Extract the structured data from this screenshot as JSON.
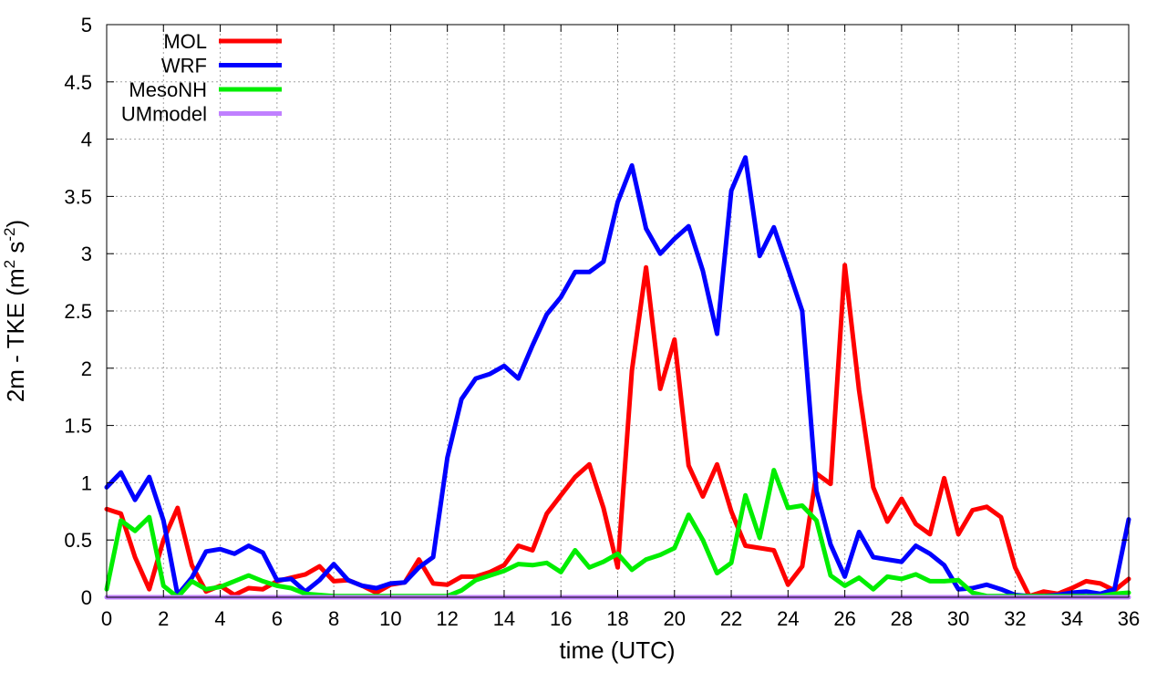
{
  "chart_data": {
    "type": "line",
    "xlabel": "time (UTC)",
    "ylabel_main": "2m - TKE (m",
    "ylabel_sup1": "2",
    "ylabel_mid": " s",
    "ylabel_sup2": "-2",
    "ylabel_end": ")",
    "xlim": [
      0,
      36
    ],
    "ylim": [
      0,
      5
    ],
    "xticks": [
      0,
      2,
      4,
      6,
      8,
      10,
      12,
      14,
      16,
      18,
      20,
      22,
      24,
      26,
      28,
      30,
      32,
      34,
      36
    ],
    "yticks": [
      0,
      0.5,
      1,
      1.5,
      2,
      2.5,
      3,
      3.5,
      4,
      4.5,
      5
    ],
    "ytick_labels": [
      "0",
      "0.5",
      "1",
      "1.5",
      "2",
      "2.5",
      "3",
      "3.5",
      "4",
      "4.5",
      "5"
    ],
    "grid": true,
    "legend_position": "top-left",
    "x": [
      0,
      0.5,
      1,
      1.5,
      2,
      2.5,
      3,
      3.5,
      4,
      4.5,
      5,
      5.5,
      6,
      6.5,
      7,
      7.5,
      8,
      8.5,
      9,
      9.5,
      10,
      10.5,
      11,
      11.5,
      12,
      12.5,
      13,
      13.5,
      14,
      14.5,
      15,
      15.5,
      16,
      16.5,
      17,
      17.5,
      18,
      18.5,
      19,
      19.5,
      20,
      20.5,
      21,
      21.5,
      22,
      22.5,
      23,
      23.5,
      24,
      24.5,
      25,
      25.5,
      26,
      26.5,
      27,
      27.5,
      28,
      28.5,
      29,
      29.5,
      30,
      30.5,
      31,
      31.5,
      32,
      32.5,
      33,
      33.5,
      34,
      34.5,
      35,
      35.5,
      36
    ],
    "series": [
      {
        "name": "MOL",
        "color": "#ff0000",
        "values": [
          0.77,
          0.73,
          0.35,
          0.07,
          0.5,
          0.78,
          0.28,
          0.05,
          0.1,
          0.02,
          0.08,
          0.07,
          0.14,
          0.17,
          0.2,
          0.27,
          0.14,
          0.15,
          0.1,
          0.04,
          0.11,
          0.13,
          0.33,
          0.12,
          0.11,
          0.18,
          0.18,
          0.22,
          0.28,
          0.45,
          0.41,
          0.73,
          0.89,
          1.05,
          1.16,
          0.78,
          0.26,
          1.98,
          2.88,
          1.82,
          2.25,
          1.15,
          0.88,
          1.16,
          0.75,
          0.45,
          0.43,
          0.41,
          0.11,
          0.27,
          1.08,
          0.99,
          2.9,
          1.81,
          0.96,
          0.66,
          0.86,
          0.64,
          0.55,
          1.04,
          0.55,
          0.76,
          0.79,
          0.7,
          0.26,
          0.01,
          0.05,
          0.03,
          0.08,
          0.14,
          0.12,
          0.06,
          0.16
        ]
      },
      {
        "name": "WRF",
        "color": "#0000ff",
        "values": [
          0.96,
          1.09,
          0.85,
          1.05,
          0.67,
          0.02,
          0.17,
          0.4,
          0.42,
          0.38,
          0.45,
          0.39,
          0.15,
          0.16,
          0.05,
          0.15,
          0.29,
          0.15,
          0.1,
          0.08,
          0.12,
          0.13,
          0.26,
          0.35,
          1.22,
          1.73,
          1.91,
          1.95,
          2.02,
          1.91,
          2.2,
          2.47,
          2.62,
          2.84,
          2.84,
          2.93,
          3.45,
          3.77,
          3.22,
          3.0,
          3.13,
          3.24,
          2.85,
          2.3,
          3.55,
          3.84,
          2.98,
          3.23,
          2.87,
          2.5,
          0.93,
          0.46,
          0.18,
          0.57,
          0.35,
          0.33,
          0.31,
          0.45,
          0.38,
          0.28,
          0.07,
          0.08,
          0.11,
          0.07,
          0.02,
          0.01,
          0.01,
          0.02,
          0.04,
          0.05,
          0.03,
          0.07,
          0.68
        ]
      },
      {
        "name": "MesoNH",
        "color": "#00ee00",
        "values": [
          0.07,
          0.67,
          0.58,
          0.7,
          0.1,
          0.0,
          0.14,
          0.07,
          0.09,
          0.14,
          0.19,
          0.14,
          0.1,
          0.08,
          0.03,
          0.02,
          0.01,
          0.01,
          0.01,
          0.01,
          0.01,
          0.01,
          0.01,
          0.01,
          0.01,
          0.06,
          0.15,
          0.19,
          0.23,
          0.29,
          0.28,
          0.3,
          0.22,
          0.41,
          0.26,
          0.31,
          0.38,
          0.24,
          0.33,
          0.37,
          0.43,
          0.72,
          0.5,
          0.21,
          0.3,
          0.89,
          0.52,
          1.11,
          0.78,
          0.8,
          0.67,
          0.19,
          0.1,
          0.17,
          0.07,
          0.18,
          0.16,
          0.2,
          0.14,
          0.14,
          0.15,
          0.04,
          0.01,
          0.01,
          0.01,
          0.01,
          0.01,
          0.01,
          0.01,
          0.01,
          0.01,
          0.03,
          0.04
        ]
      },
      {
        "name": "UMmodel",
        "color": "#c080ff",
        "values": [
          0,
          0,
          0,
          0,
          0,
          0,
          0,
          0,
          0,
          0,
          0,
          0,
          0,
          0,
          0,
          0,
          0,
          0,
          0,
          0,
          0,
          0,
          0,
          0,
          0,
          0,
          0,
          0,
          0,
          0,
          0,
          0,
          0,
          0,
          0,
          0,
          0,
          0,
          0,
          0,
          0,
          0,
          0,
          0,
          0,
          0,
          0,
          0,
          0,
          0,
          0,
          0,
          0,
          0,
          0,
          0,
          0,
          0,
          0,
          0,
          0,
          0,
          0,
          0,
          0,
          0,
          0,
          0,
          0,
          0,
          0,
          0,
          0
        ]
      }
    ]
  }
}
